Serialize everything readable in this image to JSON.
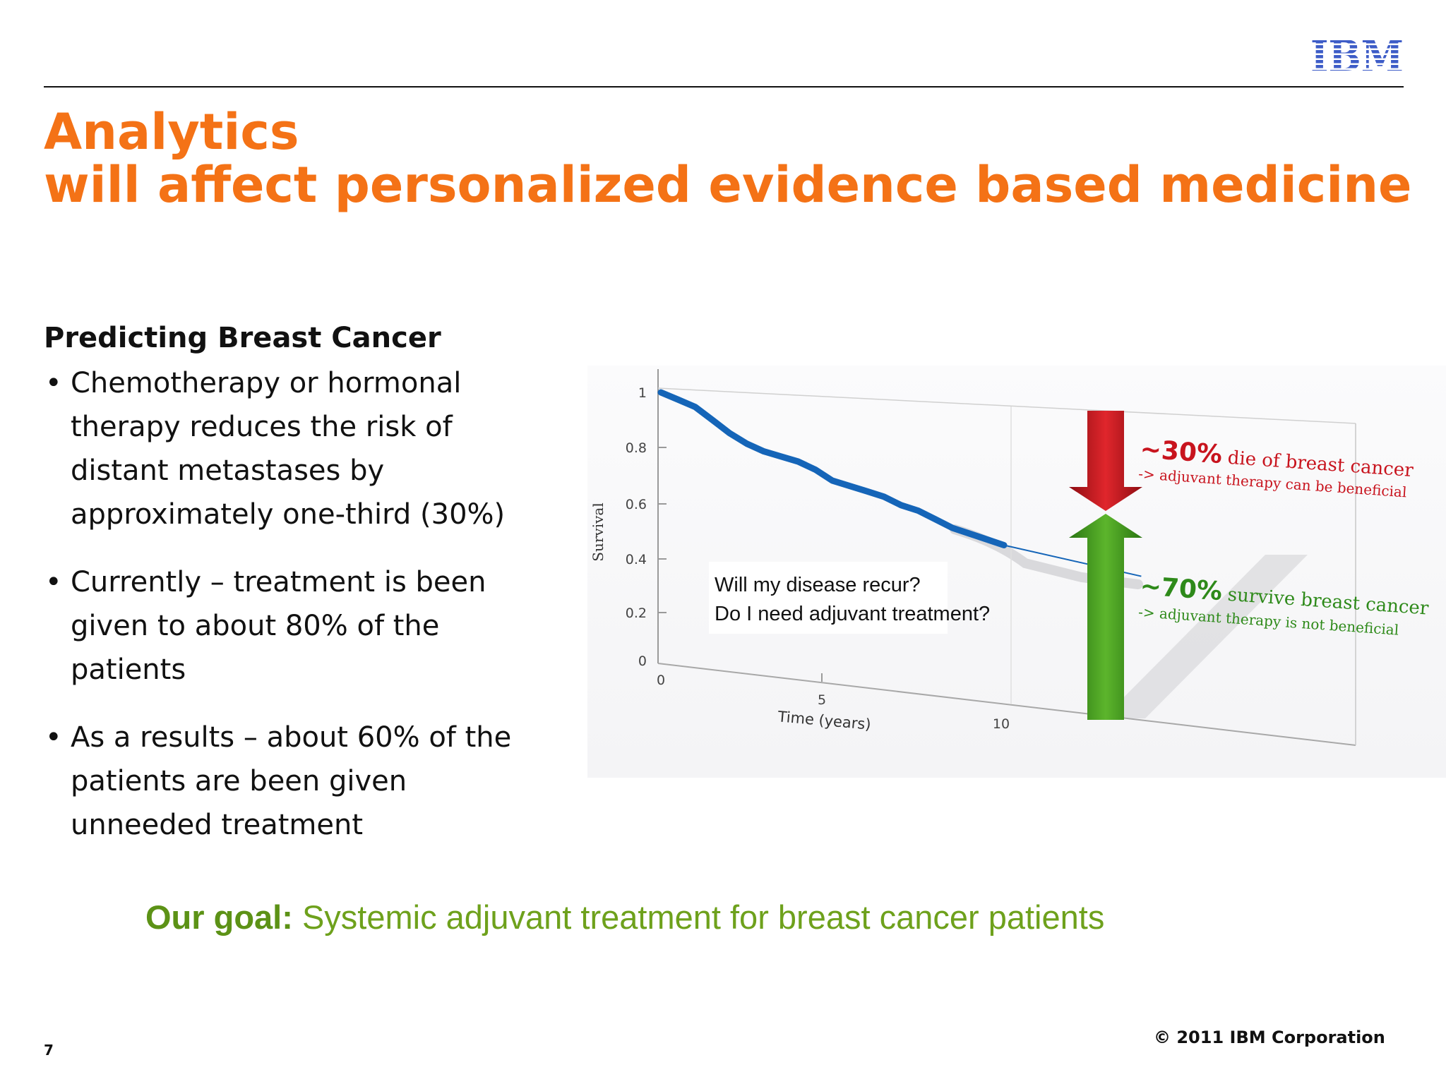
{
  "header": {
    "logo_text": "IBM",
    "title_line1": "Analytics",
    "title_line2": "will affect personalized evidence based medicine"
  },
  "content": {
    "heading": "Predicting Breast Cancer",
    "bullets": [
      "Chemotherapy or hormonal therapy reduces the risk of distant metastases by approximately one-third (30%)",
      "Currently – treatment is been given to about 80% of the patients",
      "As a results – about 60% of the patients are been given unneeded treatment"
    ]
  },
  "figure": {
    "y_axis_label": "Survival",
    "x_axis_label": "Time (years)",
    "y_ticks": [
      "1",
      "0.8",
      "0.6",
      "0.4",
      "0.2",
      "0"
    ],
    "x_ticks": [
      "0",
      "5",
      "10"
    ],
    "question_line1": "Will my disease recur?",
    "question_line2": "Do I need adjuvant treatment?",
    "die_pct": "~30%",
    "die_text": " die of breast cancer",
    "die_sub": "-> adjuvant therapy can be beneficial",
    "survive_pct": "~70%",
    "survive_text": " survive breast cancer",
    "survive_sub": "-> adjuvant therapy is not beneficial",
    "colors": {
      "curve": "#1565b8",
      "die_arrow": "#c8141e",
      "survive_arrow": "#3f9b1e",
      "die_text": "#c8141e",
      "survive_text": "#2e8a1a"
    }
  },
  "chart_data": {
    "type": "line",
    "title": "",
    "xlabel": "Time (years)",
    "ylabel": "Survival",
    "xlim": [
      0,
      14
    ],
    "ylim": [
      0,
      1
    ],
    "x_ticks": [
      0,
      5,
      10
    ],
    "y_ticks": [
      0,
      0.2,
      0.4,
      0.6,
      0.8,
      1
    ],
    "series": [
      {
        "x": [
          0,
          0.5,
          1.0,
          1.5,
          2.0,
          2.5,
          3.0,
          3.5,
          4.0,
          4.5,
          5.0,
          5.5,
          6.0,
          6.5,
          7.0,
          7.5,
          8.0,
          8.5,
          9.0,
          9.5,
          10.0
        ],
        "values": [
          1.0,
          0.98,
          0.96,
          0.92,
          0.88,
          0.85,
          0.83,
          0.82,
          0.81,
          0.79,
          0.76,
          0.75,
          0.74,
          0.73,
          0.71,
          0.7,
          0.68,
          0.66,
          0.65,
          0.64,
          0.63
        ]
      }
    ],
    "extrapolation": {
      "x": [
        10,
        14
      ],
      "values": [
        0.63,
        0.6
      ]
    },
    "annotations": [
      {
        "label": "~30% die of breast cancer",
        "sub": "-> adjuvant therapy can be beneficial"
      },
      {
        "label": "~70% survive breast cancer",
        "sub": "-> adjuvant therapy is not beneficial"
      }
    ]
  },
  "goal": {
    "label": "Our goal:",
    "text": " Systemic adjuvant treatment for breast cancer patients"
  },
  "footer": {
    "page_number": "7",
    "copyright": "© 2011 IBM Corporation"
  }
}
